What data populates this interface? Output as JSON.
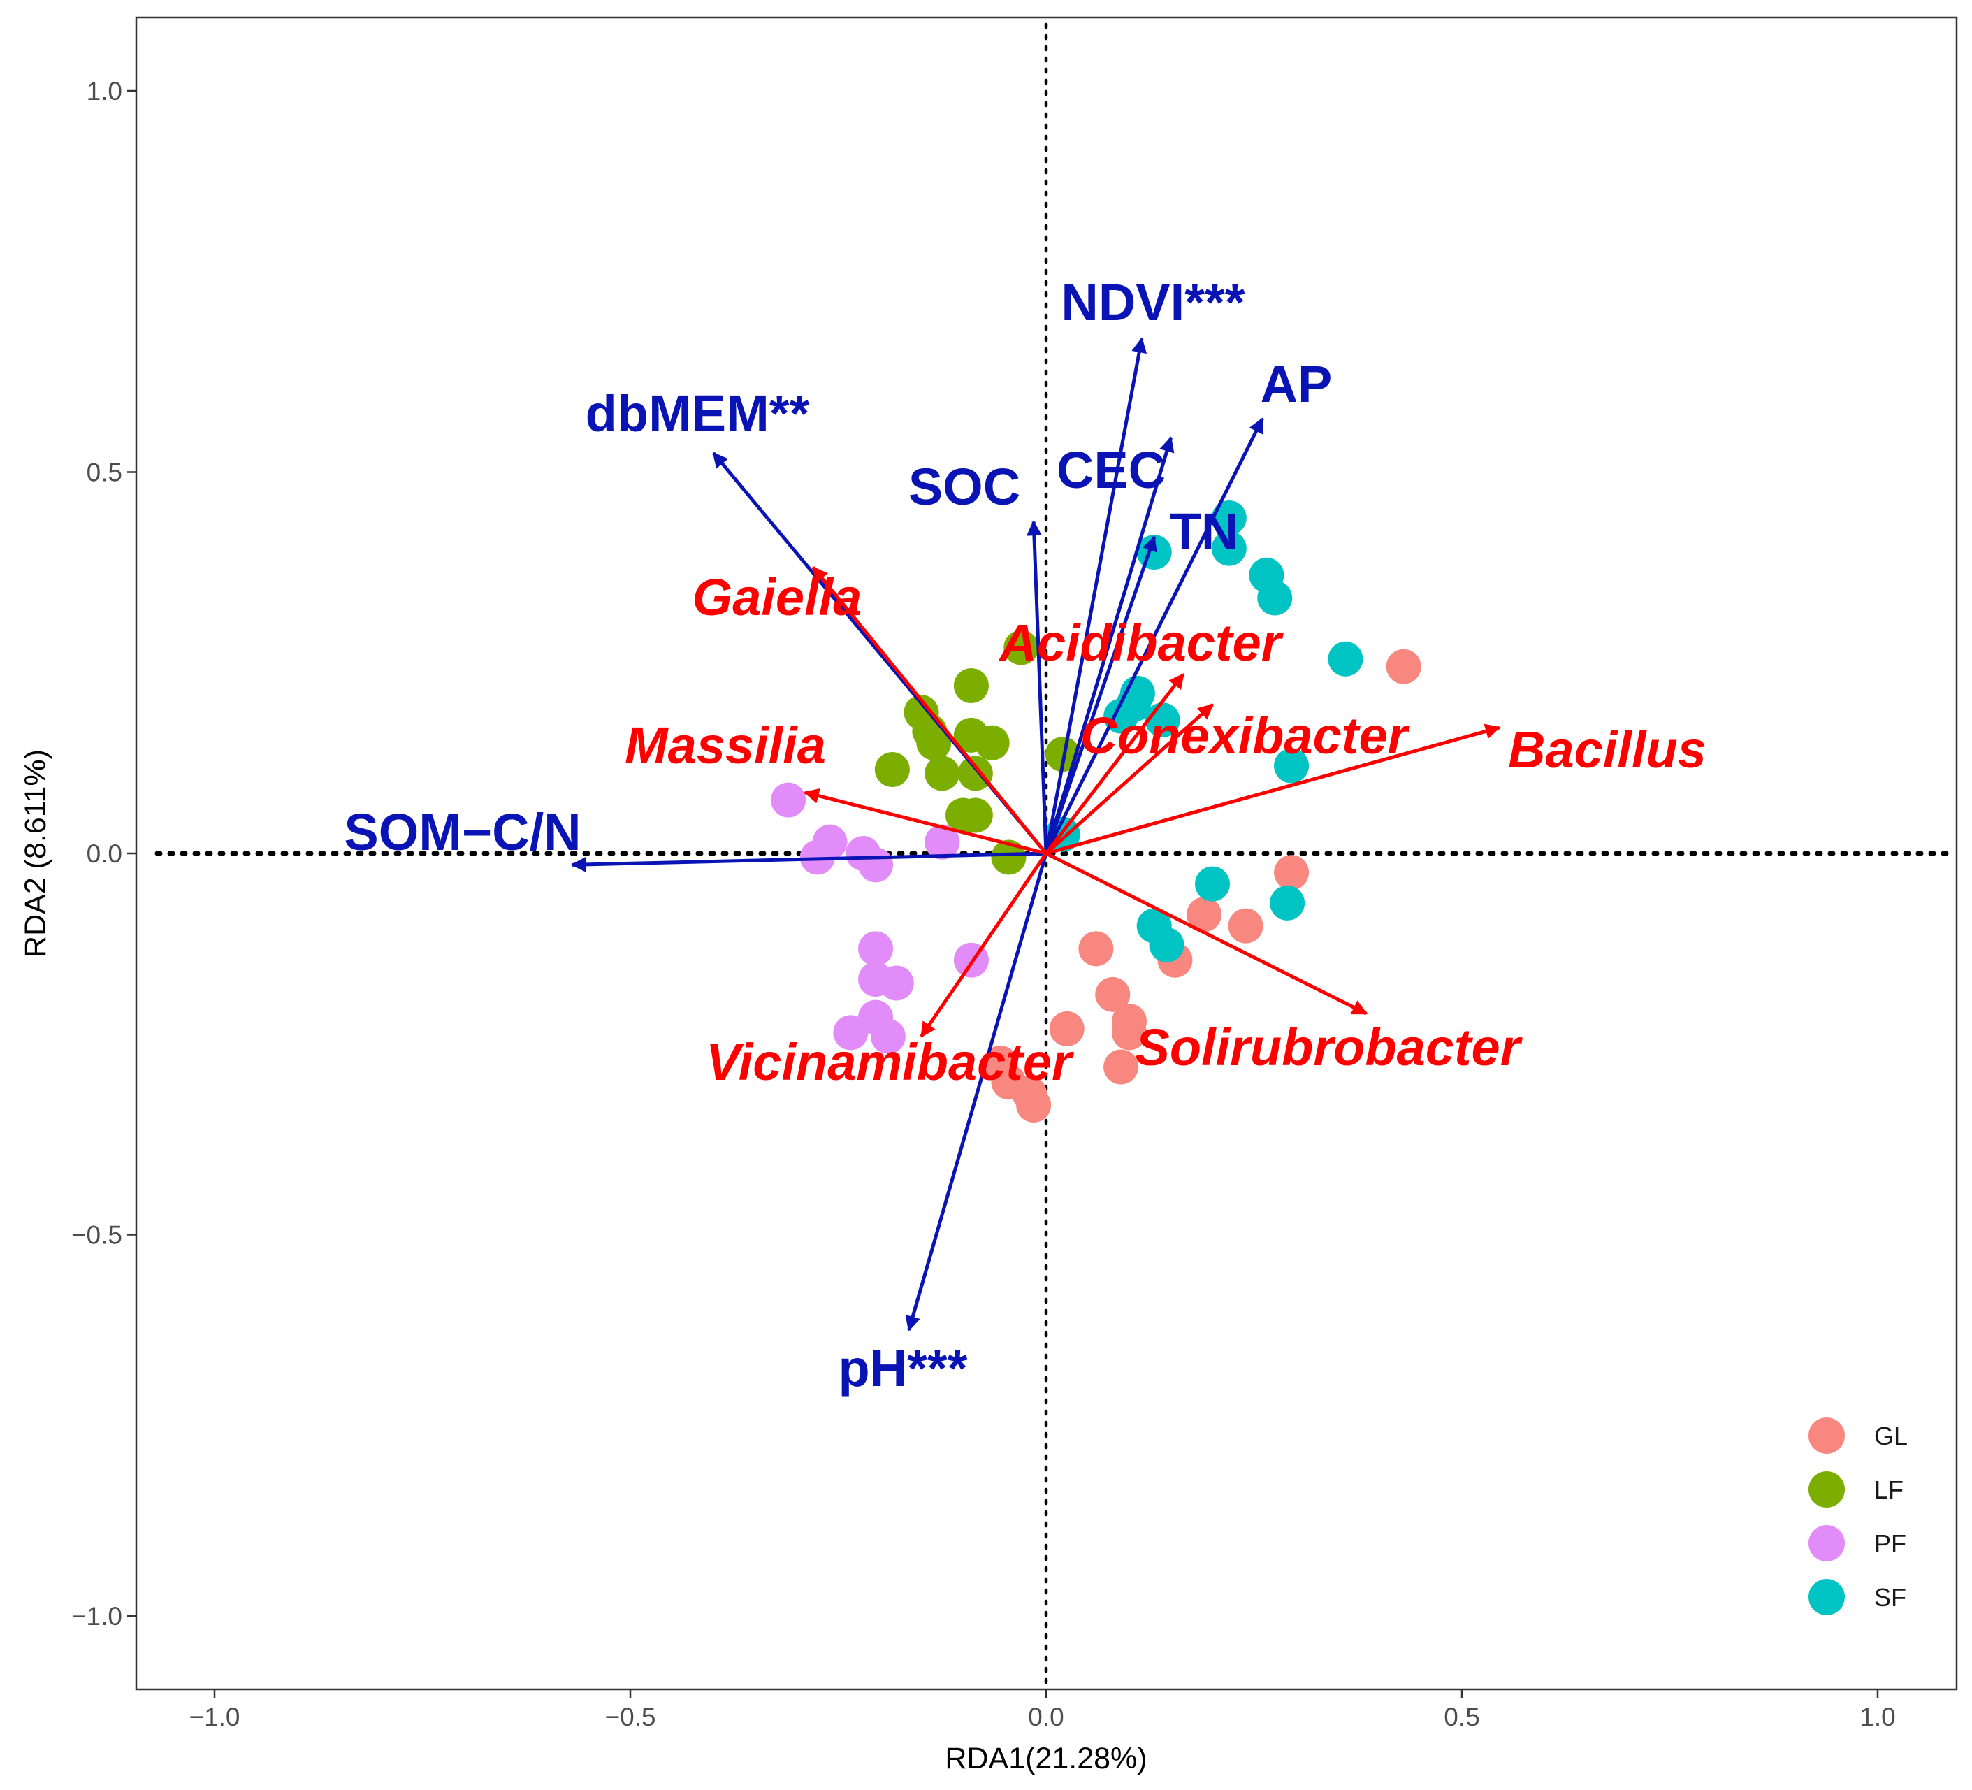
{
  "chart_data": {
    "type": "scatter",
    "subtype": "RDA biplot",
    "xlabel": "RDA1(21.28%)",
    "ylabel": "RDA2 (8.611%)",
    "xlim": [
      -1.09,
      1.09
    ],
    "ylim": [
      -1.1,
      1.1
    ],
    "x_ticks": [
      {
        "value": -1.0,
        "label": "−1.0"
      },
      {
        "value": -0.5,
        "label": "−0.5"
      },
      {
        "value": 0.0,
        "label": "0.0"
      },
      {
        "value": 0.5,
        "label": "0.5"
      },
      {
        "value": 1.0,
        "label": "1.0"
      }
    ],
    "y_ticks": [
      {
        "value": -1.0,
        "label": "−1.0"
      },
      {
        "value": -0.5,
        "label": "−0.5"
      },
      {
        "value": 0.0,
        "label": "0.0"
      },
      {
        "value": 0.5,
        "label": "0.5"
      },
      {
        "value": 1.0,
        "label": "1.0"
      }
    ],
    "grid": false,
    "colors": {
      "env_arrow": "#0a14b4",
      "species_arrow": "#ff0000",
      "reference_line": "#000000"
    },
    "legend": {
      "position": "bottom-right",
      "entries": [
        {
          "label": "GL",
          "color": "#f8877f"
        },
        {
          "label": "LF",
          "color": "#7cae00"
        },
        {
          "label": "PF",
          "color": "#e28cfa"
        },
        {
          "label": "SF",
          "color": "#00c4c4"
        }
      ]
    },
    "env_arrows": [
      {
        "label": "NDVI***",
        "x": 0.115,
        "y": 0.675
      },
      {
        "label": "AP",
        "x": 0.26,
        "y": 0.57
      },
      {
        "label": "CEC",
        "x": 0.15,
        "y": 0.545
      },
      {
        "label": "SOC",
        "x": -0.015,
        "y": 0.435
      },
      {
        "label": "TN",
        "x": 0.13,
        "y": 0.415
      },
      {
        "label": "dbMEM**",
        "x": -0.4,
        "y": 0.525
      },
      {
        "label": "SOM−C/N",
        "x": -0.57,
        "y": -0.015
      },
      {
        "label": "pH***",
        "x": -0.165,
        "y": -0.625
      }
    ],
    "species_arrows": [
      {
        "label": "Gaiella",
        "x": -0.28,
        "y": 0.375
      },
      {
        "label": "Acidibacter",
        "x": 0.165,
        "y": 0.235
      },
      {
        "label": "Conexibacter",
        "x": 0.2,
        "y": 0.195
      },
      {
        "label": "Bacillus",
        "x": 0.545,
        "y": 0.165
      },
      {
        "label": "Massilia",
        "x": -0.29,
        "y": 0.08
      },
      {
        "label": "Vicinamibacter",
        "x": -0.15,
        "y": -0.24
      },
      {
        "label": "Solirubrobacter",
        "x": 0.385,
        "y": -0.21
      }
    ],
    "series": [
      {
        "name": "GL",
        "points": [
          [
            0.43,
            0.245
          ],
          [
            0.295,
            -0.025
          ],
          [
            0.19,
            -0.08
          ],
          [
            0.24,
            -0.095
          ],
          [
            0.155,
            -0.14
          ],
          [
            0.06,
            -0.125
          ],
          [
            0.08,
            -0.185
          ],
          [
            0.1,
            -0.22
          ],
          [
            0.025,
            -0.23
          ],
          [
            0.1,
            -0.235
          ],
          [
            0.09,
            -0.28
          ],
          [
            -0.055,
            -0.275
          ],
          [
            -0.045,
            -0.3
          ],
          [
            -0.02,
            -0.315
          ],
          [
            -0.015,
            -0.33
          ]
        ]
      },
      {
        "name": "LF",
        "points": [
          [
            -0.03,
            0.27
          ],
          [
            -0.09,
            0.22
          ],
          [
            -0.15,
            0.185
          ],
          [
            -0.14,
            0.16
          ],
          [
            -0.09,
            0.155
          ],
          [
            -0.065,
            0.145
          ],
          [
            -0.135,
            0.145
          ],
          [
            -0.185,
            0.11
          ],
          [
            -0.125,
            0.105
          ],
          [
            -0.085,
            0.105
          ],
          [
            0.02,
            0.13
          ],
          [
            -0.1,
            0.05
          ],
          [
            -0.085,
            0.05
          ],
          [
            -0.125,
            0.015
          ],
          [
            -0.045,
            -0.005
          ]
        ]
      },
      {
        "name": "PF",
        "points": [
          [
            -0.31,
            0.07
          ],
          [
            -0.26,
            0.015
          ],
          [
            -0.275,
            -0.005
          ],
          [
            -0.22,
            0.0
          ],
          [
            -0.205,
            -0.015
          ],
          [
            -0.125,
            0.015
          ],
          [
            -0.205,
            -0.125
          ],
          [
            -0.09,
            -0.14
          ],
          [
            -0.205,
            -0.165
          ],
          [
            -0.18,
            -0.17
          ],
          [
            -0.205,
            -0.215
          ],
          [
            -0.235,
            -0.235
          ],
          [
            -0.19,
            -0.24
          ]
        ]
      },
      {
        "name": "SF",
        "points": [
          [
            0.22,
            0.44
          ],
          [
            0.13,
            0.395
          ],
          [
            0.22,
            0.4
          ],
          [
            0.265,
            0.365
          ],
          [
            0.275,
            0.335
          ],
          [
            0.36,
            0.255
          ],
          [
            0.11,
            0.21
          ],
          [
            0.105,
            0.195
          ],
          [
            0.09,
            0.18
          ],
          [
            0.14,
            0.175
          ],
          [
            0.295,
            0.115
          ],
          [
            0.02,
            0.025
          ],
          [
            0.2,
            -0.04
          ],
          [
            0.29,
            -0.065
          ],
          [
            0.13,
            -0.095
          ],
          [
            0.145,
            -0.12
          ]
        ]
      }
    ]
  }
}
